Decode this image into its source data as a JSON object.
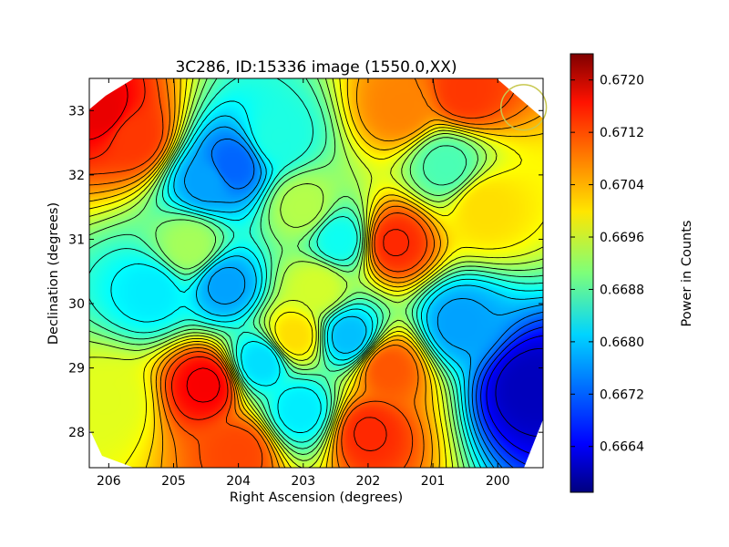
{
  "chart_data": {
    "type": "heatmap",
    "title": "3C286, ID:15336 image (1550.0,XX)",
    "xlabel": "Right Ascension (degrees)",
    "ylabel": "Declination (degrees)",
    "xlim": [
      206.3,
      199.3
    ],
    "ylim": [
      27.45,
      33.5
    ],
    "x_ticks": [
      206,
      205,
      204,
      203,
      202,
      201,
      200
    ],
    "y_ticks": [
      28,
      29,
      30,
      31,
      32,
      33
    ],
    "colorbar": {
      "label": "Power in Counts",
      "range": [
        0.6657,
        0.6724
      ],
      "ticks": [
        "0.6664",
        "0.6672",
        "0.6680",
        "0.6688",
        "0.6696",
        "0.6704",
        "0.6712",
        "0.6720"
      ],
      "tick_values": [
        0.6664,
        0.6672,
        0.668,
        0.6688,
        0.6696,
        0.6704,
        0.6712,
        0.672
      ],
      "colormap": "jet"
    },
    "contours": true,
    "grid": false,
    "marker": {
      "type": "circle",
      "ra": 199.6,
      "dec": 33.05,
      "radius_deg": 0.35,
      "color": "#c8c850"
    },
    "features": [
      {
        "ra": 206.1,
        "dec": 33.0,
        "value": 0.6717
      },
      {
        "ra": 205.6,
        "dec": 32.6,
        "value": 0.6712
      },
      {
        "ra": 204.1,
        "dec": 32.15,
        "value": 0.6672
      },
      {
        "ra": 204.5,
        "dec": 31.9,
        "value": 0.6676
      },
      {
        "ra": 203.4,
        "dec": 32.6,
        "value": 0.6684
      },
      {
        "ra": 204.2,
        "dec": 30.3,
        "value": 0.6676
      },
      {
        "ra": 205.35,
        "dec": 30.2,
        "value": 0.6681
      },
      {
        "ra": 204.75,
        "dec": 30.9,
        "value": 0.6693
      },
      {
        "ra": 202.45,
        "dec": 31.0,
        "value": 0.6683
      },
      {
        "ra": 201.6,
        "dec": 30.95,
        "value": 0.6713
      },
      {
        "ra": 202.8,
        "dec": 30.25,
        "value": 0.6696
      },
      {
        "ra": 202.3,
        "dec": 29.5,
        "value": 0.6678
      },
      {
        "ra": 203.15,
        "dec": 29.5,
        "value": 0.6701
      },
      {
        "ra": 203.65,
        "dec": 29.1,
        "value": 0.668
      },
      {
        "ra": 203.05,
        "dec": 28.35,
        "value": 0.6681
      },
      {
        "ra": 204.5,
        "dec": 28.75,
        "value": 0.6716
      },
      {
        "ra": 204.0,
        "dec": 27.7,
        "value": 0.6711
      },
      {
        "ra": 202.0,
        "dec": 28.0,
        "value": 0.6713
      },
      {
        "ra": 201.7,
        "dec": 29.0,
        "value": 0.671
      },
      {
        "ra": 200.6,
        "dec": 29.7,
        "value": 0.6676
      },
      {
        "ra": 199.5,
        "dec": 28.7,
        "value": 0.6661
      },
      {
        "ra": 201.5,
        "dec": 33.05,
        "value": 0.6707
      },
      {
        "ra": 200.5,
        "dec": 33.3,
        "value": 0.6712
      },
      {
        "ra": 200.8,
        "dec": 32.15,
        "value": 0.6687
      },
      {
        "ra": 200.2,
        "dec": 31.5,
        "value": 0.6701
      },
      {
        "ra": 206.0,
        "dec": 28.5,
        "value": 0.6697
      },
      {
        "ra": 203.0,
        "dec": 31.5,
        "value": 0.6694
      }
    ]
  }
}
